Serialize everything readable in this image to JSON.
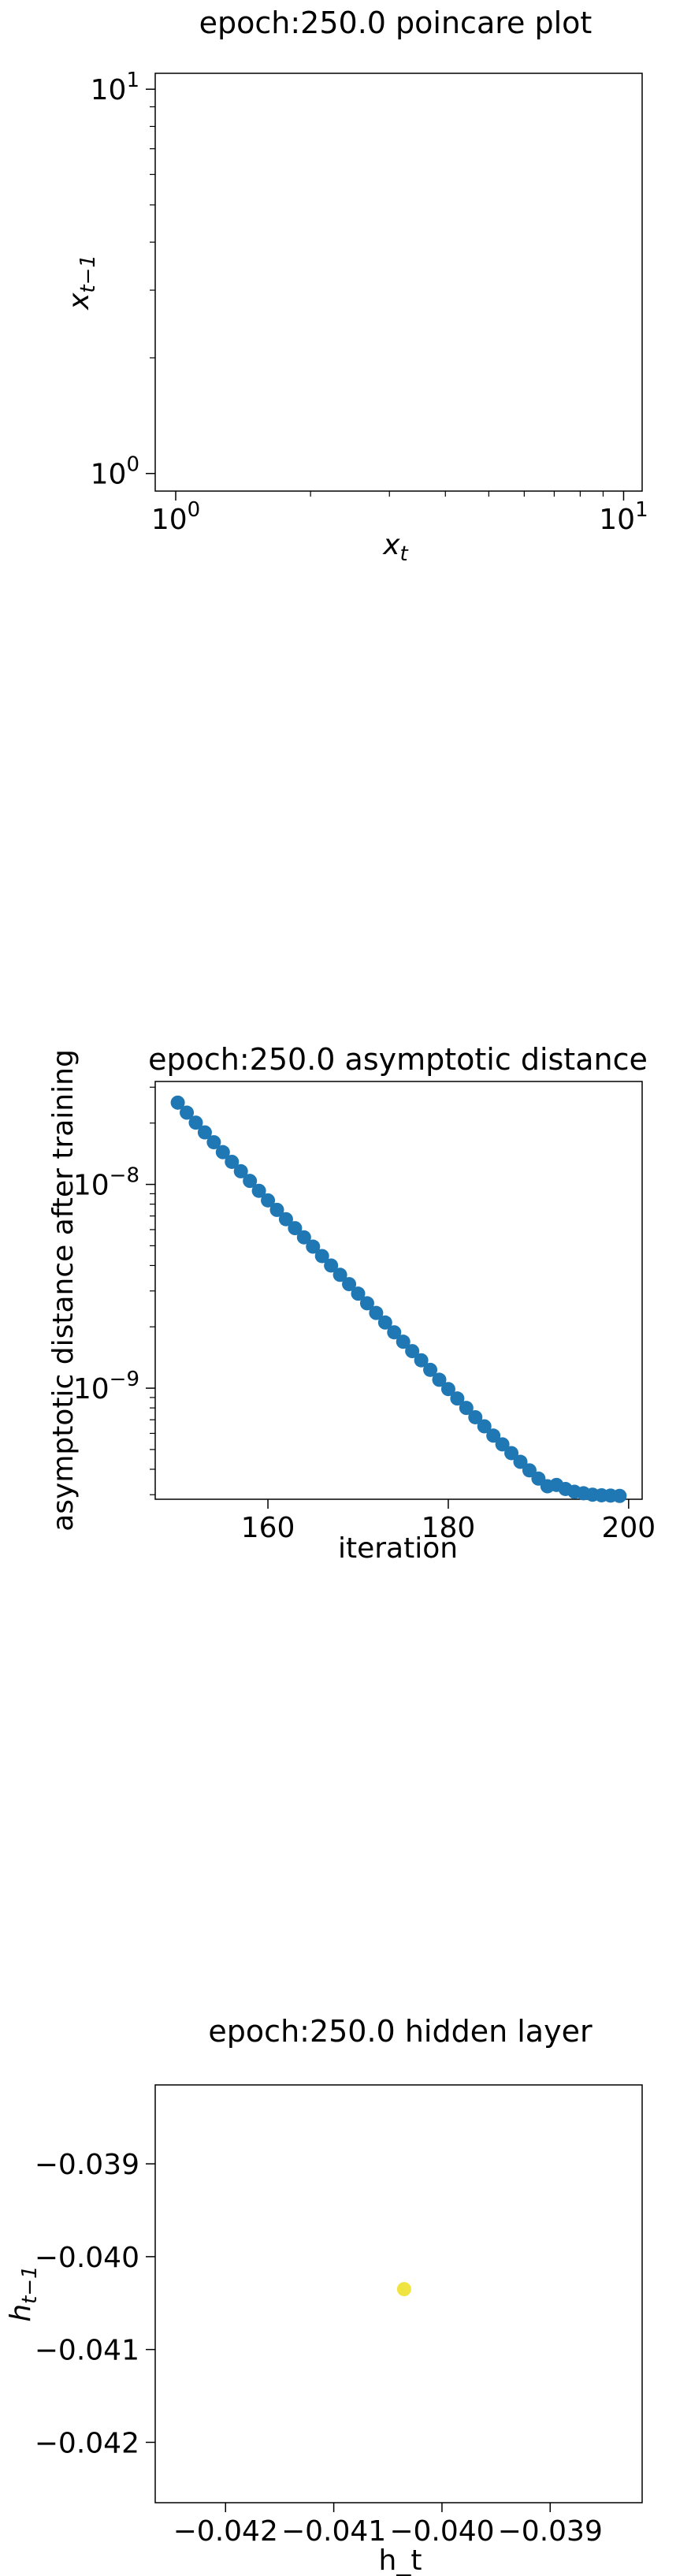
{
  "chart_data": [
    {
      "type": "scatter",
      "title": "epoch:250.0 poincare plot",
      "xlabel": "x",
      "xlabel_sub": "t",
      "ylabel": "x",
      "ylabel_sub": "t−1",
      "xscale": "log",
      "yscale": "log",
      "xlim": [
        0.9,
        11
      ],
      "ylim": [
        0.9,
        11
      ],
      "xticks": [
        {
          "value": 1,
          "base": "10",
          "exp": "0"
        },
        {
          "value": 10,
          "base": "10",
          "exp": "1"
        }
      ],
      "yticks": [
        {
          "value": 1,
          "base": "10",
          "exp": "0"
        },
        {
          "value": 10,
          "base": "10",
          "exp": "1"
        }
      ],
      "grid": false,
      "x": [],
      "y": []
    },
    {
      "type": "scatter",
      "title": "epoch:250.0 asymptotic distance",
      "xlabel": "iteration",
      "ylabel": "asymptotic distance after training",
      "yscale": "log",
      "xlim": [
        147.5,
        201.5
      ],
      "ylim": [
        2.85e-10,
        3.2e-08
      ],
      "xticks": [
        {
          "value": 160,
          "label": "160"
        },
        {
          "value": 180,
          "label": "180"
        },
        {
          "value": 200,
          "label": "200"
        }
      ],
      "yticks": [
        {
          "value": 1e-09,
          "base": "10",
          "exp": "−9"
        },
        {
          "value": 1e-08,
          "base": "10",
          "exp": "−8"
        }
      ],
      "grid": false,
      "color": "#1f77b4",
      "x": [
        150,
        151,
        152,
        153,
        154,
        155,
        156,
        157,
        158,
        159,
        160,
        161,
        162,
        163,
        164,
        165,
        166,
        167,
        168,
        169,
        170,
        171,
        172,
        173,
        174,
        175,
        176,
        177,
        178,
        179,
        180,
        181,
        182,
        183,
        184,
        185,
        186,
        187,
        188,
        189,
        190,
        191,
        192,
        193,
        194,
        195,
        196,
        197,
        198,
        199
      ],
      "y": [
        2.52e-08,
        2.25e-08,
        2.01e-08,
        1.8e-08,
        1.61e-08,
        1.44e-08,
        1.29e-08,
        1.16e-08,
        1.04e-08,
        9.3e-09,
        8.35e-09,
        7.5e-09,
        6.75e-09,
        6.1e-09,
        5.5e-09,
        4.95e-09,
        4.45e-09,
        4e-09,
        3.6e-09,
        3.24e-09,
        2.91e-09,
        2.61e-09,
        2.34e-09,
        2.1e-09,
        1.88e-09,
        1.69e-09,
        1.52e-09,
        1.37e-09,
        1.23e-09,
        1.1e-09,
        9.9e-10,
        8.9e-10,
        8e-10,
        7.2e-10,
        6.5e-10,
        5.85e-10,
        5.3e-10,
        4.8e-10,
        4.35e-10,
        3.95e-10,
        3.6e-10,
        3.3e-10,
        3.35e-10,
        3.2e-10,
        3.1e-10,
        3.05e-10,
        3e-10,
        2.98e-10,
        2.97e-10,
        2.96e-10
      ]
    },
    {
      "type": "scatter",
      "title": "epoch:250.0 hidden layer",
      "xlabel": "h_t",
      "ylabel": "h",
      "ylabel_sub": "t−1",
      "xlim": [
        -0.04265,
        -0.03815
      ],
      "ylim": [
        -0.04265,
        -0.03815
      ],
      "xticks": [
        {
          "value": -0.042,
          "label": "−0.042"
        },
        {
          "value": -0.041,
          "label": "−0.041"
        },
        {
          "value": -0.04,
          "label": "−0.040"
        },
        {
          "value": -0.039,
          "label": "−0.039"
        }
      ],
      "yticks": [
        {
          "value": -0.042,
          "label": "−0.042"
        },
        {
          "value": -0.041,
          "label": "−0.041"
        },
        {
          "value": -0.04,
          "label": "−0.040"
        },
        {
          "value": -0.039,
          "label": "−0.039"
        }
      ],
      "grid": false,
      "color": "#f0e442",
      "x": [
        -0.04035
      ],
      "y": [
        -0.04035
      ]
    }
  ]
}
